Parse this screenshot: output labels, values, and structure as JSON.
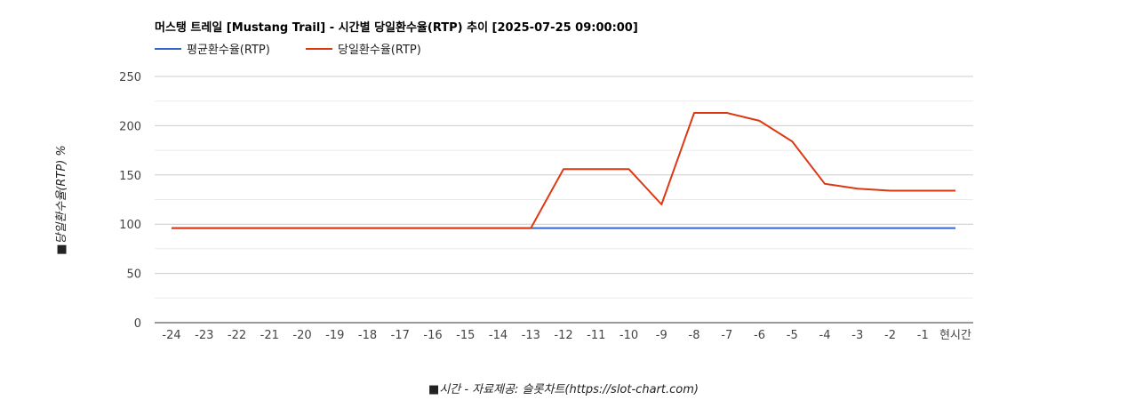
{
  "chart_data": {
    "type": "line",
    "title": "머스탱 트레일 [Mustang Trail] - 시간별 당일환수율(RTP) 추이 [2025-07-25 09:00:00]",
    "xlabel": "■시간 - 자료제공: 슬롯차트(https://slot-chart.com)",
    "ylabel": "■당일환수율(RTP) %",
    "categories": [
      "-24",
      "-23",
      "-22",
      "-21",
      "-20",
      "-19",
      "-18",
      "-17",
      "-16",
      "-15",
      "-14",
      "-13",
      "-12",
      "-11",
      "-10",
      "-9",
      "-8",
      "-7",
      "-6",
      "-5",
      "-4",
      "-3",
      "-2",
      "-1",
      "현시간"
    ],
    "ylim": [
      0,
      250
    ],
    "yticks": [
      0,
      50,
      100,
      150,
      200,
      250
    ],
    "grid": true,
    "legend_position": "top-left",
    "series": [
      {
        "name": "평균환수율(RTP)",
        "color": "#3366cc",
        "values": [
          96,
          96,
          96,
          96,
          96,
          96,
          96,
          96,
          96,
          96,
          96,
          96,
          96,
          96,
          96,
          96,
          96,
          96,
          96,
          96,
          96,
          96,
          96,
          96,
          96
        ]
      },
      {
        "name": "당일환수율(RTP)",
        "color": "#dc3912",
        "values": [
          96,
          96,
          96,
          96,
          96,
          96,
          96,
          96,
          96,
          96,
          96,
          96,
          156,
          156,
          156,
          120,
          213,
          213,
          205,
          184,
          141,
          136,
          134,
          134,
          134
        ]
      }
    ]
  }
}
